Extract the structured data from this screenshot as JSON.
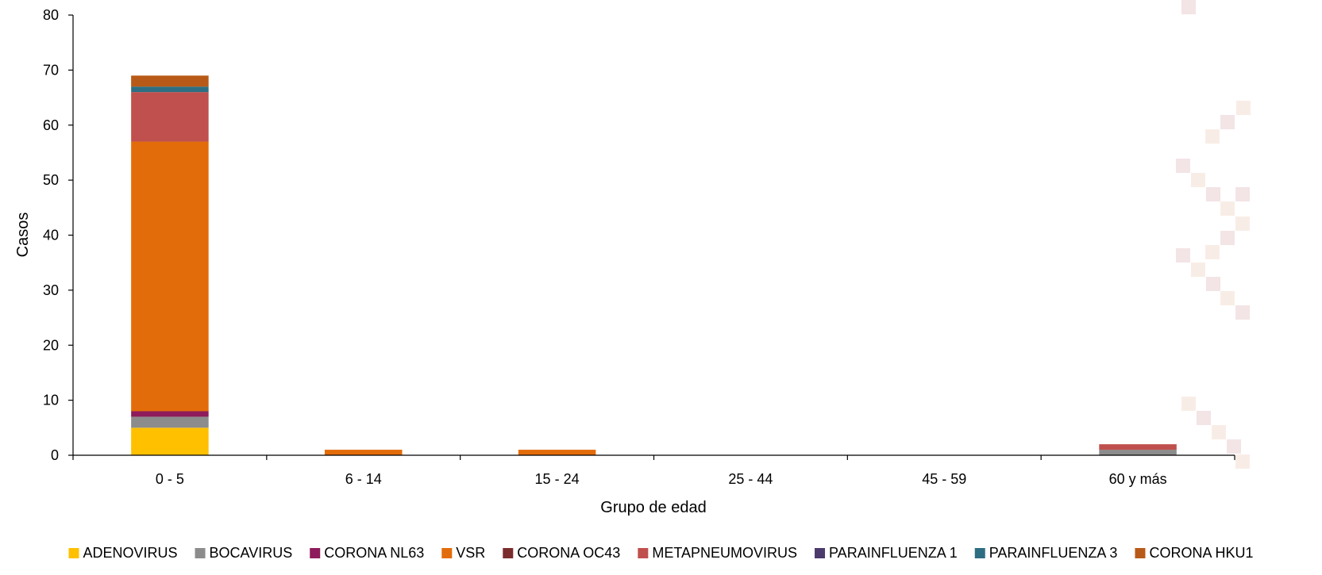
{
  "chart_data": {
    "type": "bar",
    "stacked": true,
    "title": "",
    "xlabel": "Grupo de edad",
    "ylabel": "Casos",
    "ylim": [
      0,
      80
    ],
    "yticks": [
      0,
      10,
      20,
      30,
      40,
      50,
      60,
      70,
      80
    ],
    "grid": false,
    "legend_position": "bottom",
    "categories": [
      "0 - 5",
      "6 - 14",
      "15 - 24",
      "25 - 44",
      "45 - 59",
      "60 y más"
    ],
    "series": [
      {
        "name": "ADENOVIRUS",
        "color": "#FFC000",
        "values": [
          5,
          0,
          0,
          0,
          0,
          0
        ]
      },
      {
        "name": "BOCAVIRUS",
        "color": "#8C8C8C",
        "values": [
          2,
          0,
          0,
          0,
          0,
          1
        ]
      },
      {
        "name": "CORONA NL63",
        "color": "#8E1B5B",
        "values": [
          1,
          0,
          0,
          0,
          0,
          0
        ]
      },
      {
        "name": "VSR",
        "color": "#E36C0A",
        "values": [
          49,
          1,
          1,
          0,
          0,
          0
        ]
      },
      {
        "name": "CORONA OC43",
        "color": "#7B2C2C",
        "values": [
          0,
          0,
          0,
          0,
          0,
          0
        ]
      },
      {
        "name": "METAPNEUMOVIRUS",
        "color": "#C0504D",
        "values": [
          9,
          0,
          0,
          0,
          0,
          1
        ]
      },
      {
        "name": "PARAINFLUENZA 1",
        "color": "#4B3A6B",
        "values": [
          0,
          0,
          0,
          0,
          0,
          0
        ]
      },
      {
        "name": "PARAINFLUENZA 3",
        "color": "#2E6E82",
        "values": [
          1,
          0,
          0,
          0,
          0,
          0
        ]
      },
      {
        "name": "CORONA HKU1",
        "color": "#B85A17",
        "values": [
          2,
          0,
          0,
          0,
          0,
          0
        ]
      }
    ]
  }
}
